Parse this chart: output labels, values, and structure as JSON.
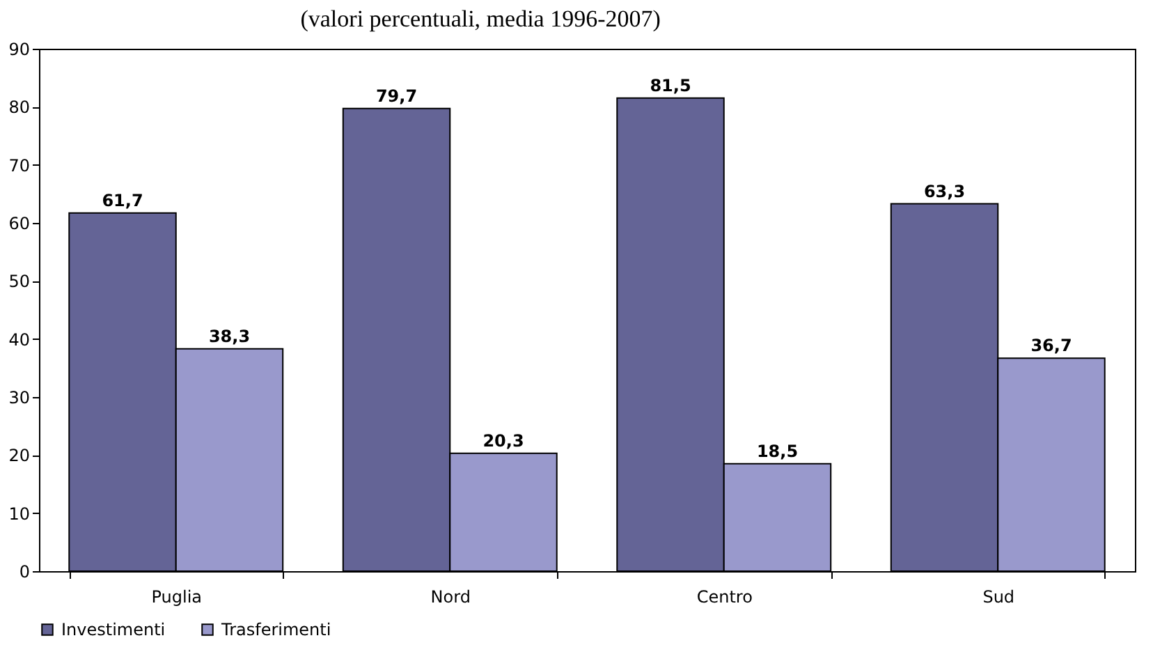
{
  "chart_data": {
    "type": "bar",
    "subtitle": "(valori percentuali, media 1996-2007)",
    "categories": [
      "Puglia",
      "Nord",
      "Centro",
      "Sud"
    ],
    "series": [
      {
        "name": "Investimenti",
        "color": "#646496",
        "values": [
          61.7,
          79.7,
          81.5,
          63.3
        ],
        "value_labels": [
          "61,7",
          "79,7",
          "81,5",
          "63,3"
        ]
      },
      {
        "name": "Trasferimenti",
        "color": "#9999cc",
        "values": [
          38.3,
          20.3,
          18.5,
          36.7
        ],
        "value_labels": [
          "38,3",
          "20,3",
          "18,5",
          "36,7"
        ]
      }
    ],
    "ylim": [
      0,
      90
    ],
    "yticks": [
      0,
      10,
      20,
      30,
      40,
      50,
      60,
      70,
      80,
      90
    ],
    "grid": false,
    "legend": "bottom"
  }
}
